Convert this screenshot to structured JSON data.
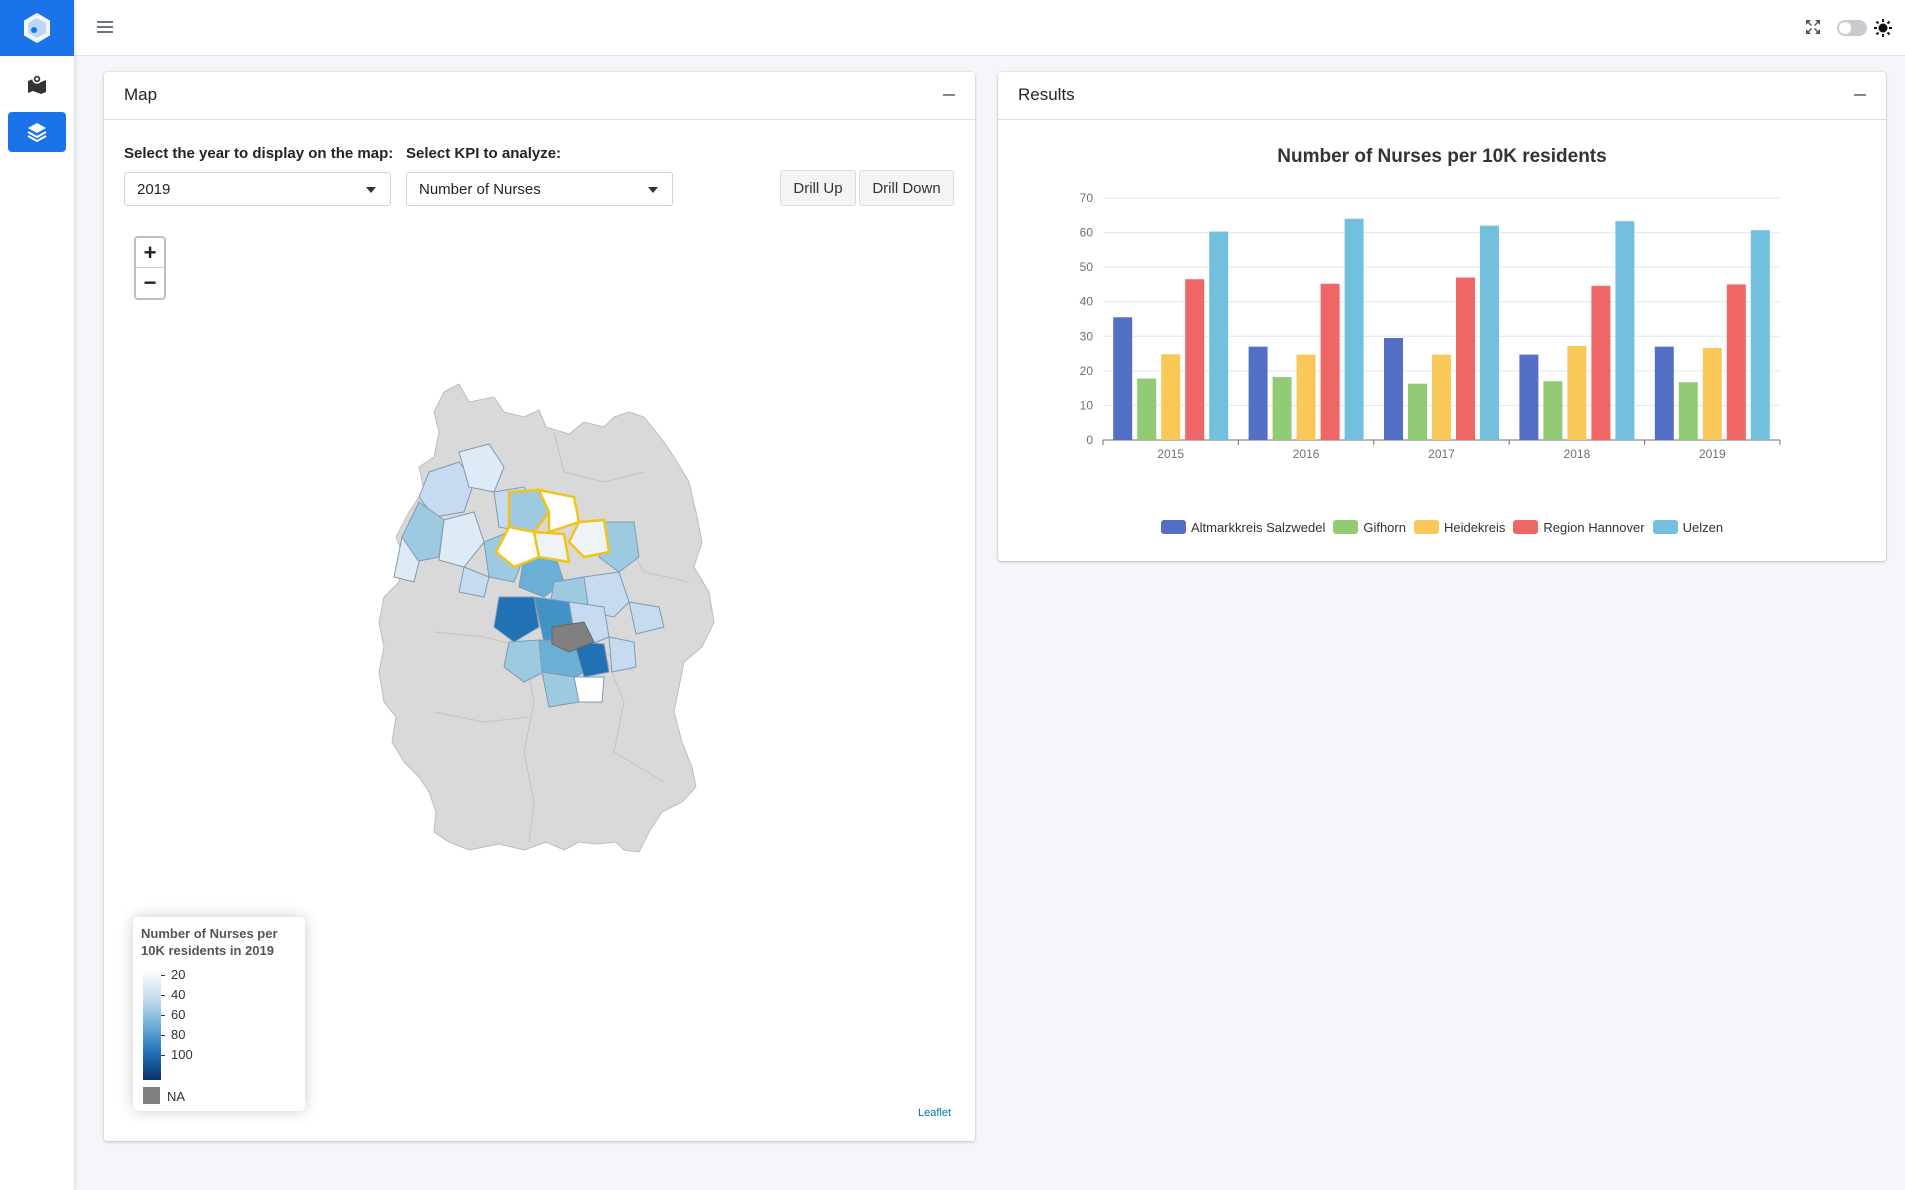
{
  "header": {
    "toggle_state": "off"
  },
  "sidebar": {
    "items": [
      {
        "icon": "map-marker-icon",
        "active": false
      },
      {
        "icon": "layers-icon",
        "active": true
      }
    ]
  },
  "map_card": {
    "title": "Map",
    "year_label": "Select the year to display on the map:",
    "year_value": "2019",
    "kpi_label": "Select KPI to analyze:",
    "kpi_value": "Number of Nurses",
    "drill_up": "Drill Up",
    "drill_down": "Drill Down",
    "zoom_in": "+",
    "zoom_out": "−",
    "legend": {
      "title": "Number of Nurses per 10K residents in 2019",
      "ticks": [
        "20",
        "40",
        "60",
        "80",
        "100"
      ],
      "na_label": "NA"
    },
    "attribution": "Leaflet"
  },
  "results_card": {
    "title": "Results"
  },
  "chart_data": {
    "type": "bar",
    "title": "Number of Nurses per 10K residents",
    "categories": [
      "2015",
      "2016",
      "2017",
      "2018",
      "2019"
    ],
    "ylim": [
      0,
      70
    ],
    "yticks": [
      0,
      10,
      20,
      30,
      40,
      50,
      60,
      70
    ],
    "grid": true,
    "legend_position": "bottom",
    "series": [
      {
        "name": "Altmarkkreis Salzwedel",
        "color": "#5470c6",
        "values": [
          35.5,
          27,
          29.5,
          24.7,
          27
        ]
      },
      {
        "name": "Gifhorn",
        "color": "#91cc75",
        "values": [
          17.8,
          18.2,
          16.3,
          17,
          16.7
        ]
      },
      {
        "name": "Heidekreis",
        "color": "#fac858",
        "values": [
          24.8,
          24.7,
          24.7,
          27.2,
          26.6
        ]
      },
      {
        "name": "Region Hannover",
        "color": "#ee6666",
        "values": [
          46.5,
          45.2,
          47,
          44.6,
          45
        ]
      },
      {
        "name": "Uelzen",
        "color": "#73c0de",
        "values": [
          60.3,
          64,
          62,
          63.3,
          60.7
        ]
      }
    ]
  }
}
